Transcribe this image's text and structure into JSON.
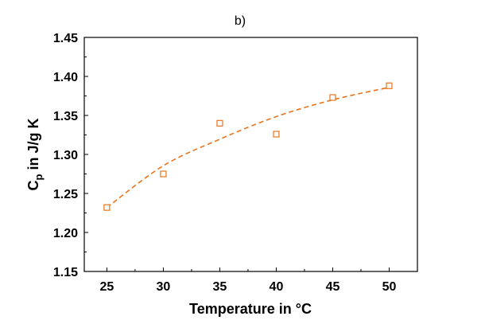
{
  "chart_data": {
    "type": "scatter",
    "title": "b)",
    "xlabel": "Temperature in °C",
    "ylabel": {
      "main": "C",
      "subscript": "p",
      "rest": " in J/g K"
    },
    "xlim": [
      23,
      52.5
    ],
    "ylim": [
      1.15,
      1.45
    ],
    "xticks": [
      "25",
      "30",
      "35",
      "40",
      "45",
      "50"
    ],
    "yticks": [
      "1.15",
      "1.20",
      "1.25",
      "1.30",
      "1.35",
      "1.40",
      "1.45"
    ],
    "grid": false,
    "series": [
      {
        "marker": "open-square",
        "color": "#E8741E",
        "points": [
          {
            "x": 25,
            "y": 1.232
          },
          {
            "x": 30,
            "y": 1.275
          },
          {
            "x": 35,
            "y": 1.34
          },
          {
            "x": 40,
            "y": 1.326
          },
          {
            "x": 45,
            "y": 1.373
          },
          {
            "x": 50,
            "y": 1.388
          }
        ]
      }
    ],
    "fit": {
      "style": "dashed",
      "color": "#E8741E",
      "x": [
        25,
        30,
        35,
        40,
        45,
        50
      ],
      "y": [
        1.232,
        1.2855,
        1.3195,
        1.3485,
        1.37,
        1.386
      ]
    }
  }
}
